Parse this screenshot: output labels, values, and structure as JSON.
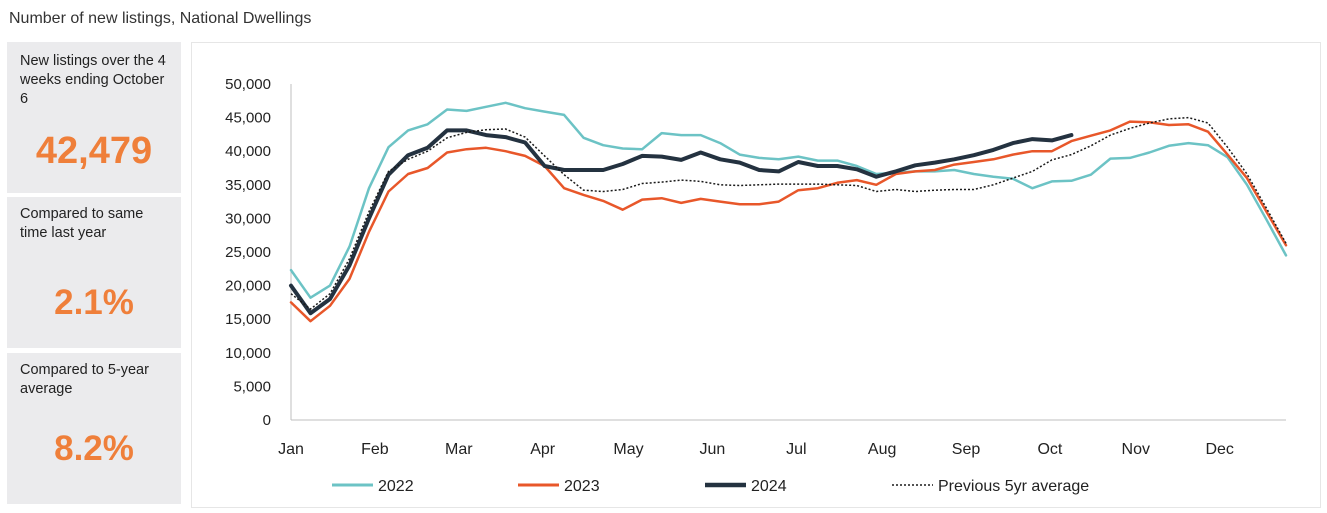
{
  "page": {
    "title": "Number of new listings, National Dwellings"
  },
  "stats": [
    {
      "label": "New listings over the 4 weeks ending October 6",
      "value": "42,479"
    },
    {
      "label": "Compared to same time last year",
      "value": "2.1%"
    },
    {
      "label": "Compared to 5-year average",
      "value": "8.2%"
    }
  ],
  "colors": {
    "accent": "#ef7f3a",
    "card_bg": "#ebebed"
  },
  "chart_data": {
    "type": "line",
    "months": [
      "Jan",
      "Feb",
      "Mar",
      "Apr",
      "May",
      "Jun",
      "Jul",
      "Aug",
      "Sep",
      "Oct",
      "Nov",
      "Dec"
    ],
    "yticks": [
      "0",
      "5,000",
      "10,000",
      "15,000",
      "20,000",
      "25,000",
      "30,000",
      "35,000",
      "40,000",
      "45,000",
      "50,000"
    ],
    "ylim": [
      0,
      50000
    ],
    "xlim": [
      1,
      52
    ],
    "grid": false,
    "legend_position": "bottom",
    "series": [
      {
        "name": "2022",
        "color": "#6cc3c5",
        "width": 2.5,
        "dash": "",
        "values": [
          22300,
          18200,
          20000,
          25800,
          34500,
          40600,
          43100,
          44000,
          46200,
          46000,
          46600,
          47200,
          46400,
          45900,
          45400,
          42000,
          40900,
          40400,
          40300,
          42700,
          42400,
          42400,
          41200,
          39500,
          39000,
          38800,
          39200,
          38600,
          38600,
          37800,
          36600,
          36800,
          37000,
          37000,
          37200,
          36600,
          36200,
          35900,
          34500,
          35500,
          35600,
          36500,
          38900,
          39000,
          39800,
          40800,
          41200,
          40900,
          39100,
          35000,
          29800,
          24500
        ]
      },
      {
        "name": "2023",
        "color": "#e8572a",
        "width": 2.5,
        "dash": "",
        "values": [
          17500,
          14700,
          17000,
          21000,
          28000,
          34000,
          36600,
          37500,
          39800,
          40300,
          40500,
          40000,
          39300,
          37800,
          34500,
          33500,
          32600,
          31300,
          32800,
          33000,
          32300,
          32900,
          32500,
          32100,
          32100,
          32500,
          34200,
          34500,
          35300,
          35700,
          35000,
          36600,
          37000,
          37200,
          38000,
          38400,
          38800,
          39500,
          40000,
          40000,
          41500,
          42300,
          43100,
          44400,
          44300,
          43900,
          44000,
          42900,
          39500,
          36000,
          31000,
          26000
        ]
      },
      {
        "name": "2024",
        "color": "#243240",
        "width": 4,
        "dash": "",
        "values": [
          20000,
          15900,
          18000,
          23000,
          30000,
          36500,
          39400,
          40500,
          43100,
          43100,
          42400,
          42100,
          41300,
          37800,
          37200,
          37200,
          37200,
          38100,
          39300,
          39200,
          38700,
          39800,
          38800,
          38300,
          37200,
          37000,
          38400,
          37800,
          37800,
          37300,
          36200,
          37000,
          37900,
          38300,
          38800,
          39400,
          40200,
          41200,
          41800,
          41600,
          42400
        ]
      },
      {
        "name": "Previous 5yr average",
        "color": "#1a1a1a",
        "width": 1.5,
        "dash": "2,2",
        "values": [
          18800,
          16500,
          18800,
          24000,
          31000,
          37000,
          38800,
          40000,
          42000,
          42800,
          43200,
          43300,
          42100,
          39300,
          36500,
          34200,
          34000,
          34300,
          35200,
          35400,
          35700,
          35500,
          35000,
          34900,
          35000,
          35100,
          35100,
          35100,
          35000,
          34900,
          34000,
          34300,
          34000,
          34200,
          34300,
          34300,
          35000,
          36000,
          37000,
          38700,
          39500,
          40800,
          42400,
          43400,
          44200,
          44800,
          45000,
          44200,
          40600,
          36600,
          31500,
          26300
        ]
      }
    ]
  }
}
